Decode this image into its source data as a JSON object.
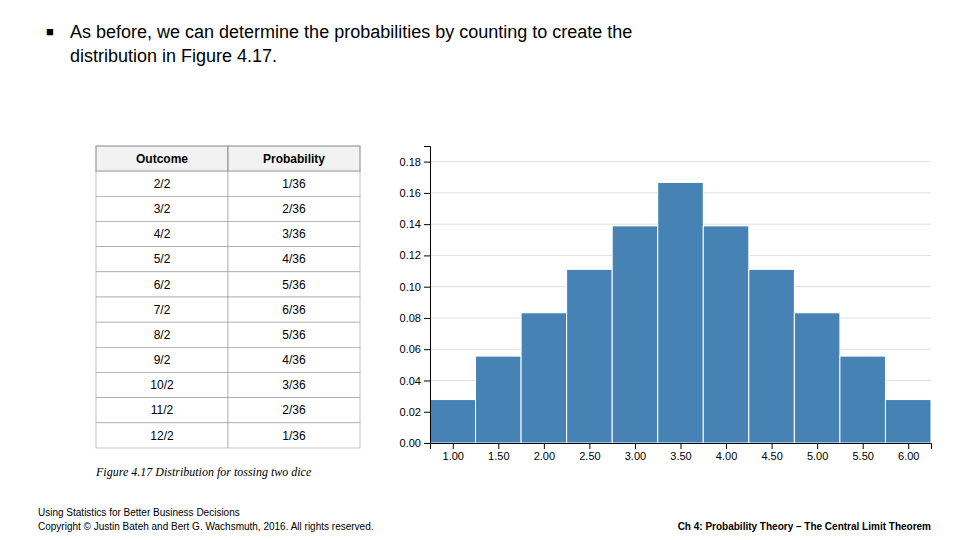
{
  "chart_data": [
    {
      "type": "bar",
      "title": "As before, we can determine the probabilities by counting to create the\ndistribution in Figure 4.17.",
      "annotations": [
        "■",
        "Figure 4.17  Distribution for tossing two dice",
        "Using Statistics for Better Business Decisions\nCopyright © Justin Bateh and Bert G. Wachsmuth, 2016. All rights reserved.",
        "Ch 4: Probability Theory – The Central Limit Theorem"
      ],
      "x": [
        1.0,
        1.5,
        2.0,
        2.5,
        3.0,
        3.5,
        4.0,
        4.5,
        5.0,
        5.5,
        6.0
      ],
      "values": [
        0.0278,
        0.0556,
        0.0833,
        0.1111,
        0.1389,
        0.1667,
        0.1389,
        0.1111,
        0.0833,
        0.0556,
        0.0278
      ],
      "color": "#4682b4",
      "xlim": [
        0.75,
        6.25
      ],
      "xticks": [
        {
          "value": 1.0,
          "label": "1.00"
        },
        {
          "value": 1.5,
          "label": "1.50"
        },
        {
          "value": 2.0,
          "label": "2.00"
        },
        {
          "value": 2.5,
          "label": "2.50"
        },
        {
          "value": 3.0,
          "label": "3.00"
        },
        {
          "value": 3.5,
          "label": "3.50"
        },
        {
          "value": 4.0,
          "label": "4.00"
        },
        {
          "value": 4.5,
          "label": "4.50"
        },
        {
          "value": 5.0,
          "label": "5.00"
        },
        {
          "value": 5.5,
          "label": "5.50"
        },
        {
          "value": 6.0,
          "label": "6.00"
        }
      ],
      "ylim": [
        0.0,
        0.19
      ],
      "yticks": [
        {
          "value": 0.0,
          "label": "0.00"
        },
        {
          "value": 0.02,
          "label": "0.02"
        },
        {
          "value": 0.04,
          "label": "0.04"
        },
        {
          "value": 0.06,
          "label": "0.06"
        },
        {
          "value": 0.08,
          "label": "0.08"
        },
        {
          "value": 0.1,
          "label": "0.10"
        },
        {
          "value": 0.12,
          "label": "0.12"
        },
        {
          "value": 0.14,
          "label": "0.14"
        },
        {
          "value": 0.16,
          "label": "0.16"
        },
        {
          "value": 0.18,
          "label": "0.18"
        }
      ],
      "grid": true
    },
    {
      "type": "table",
      "columns": [
        "Outcome",
        "Probability"
      ],
      "rows": [
        [
          "2/2",
          "1/36"
        ],
        [
          "3/2",
          "2/36"
        ],
        [
          "4/2",
          "3/36"
        ],
        [
          "5/2",
          "4/36"
        ],
        [
          "6/2",
          "5/36"
        ],
        [
          "7/2",
          "6/36"
        ],
        [
          "8/2",
          "5/36"
        ],
        [
          "9/2",
          "4/36"
        ],
        [
          "10/2",
          "3/36"
        ],
        [
          "11/2",
          "2/36"
        ],
        [
          "12/2",
          "1/36"
        ]
      ]
    }
  ]
}
